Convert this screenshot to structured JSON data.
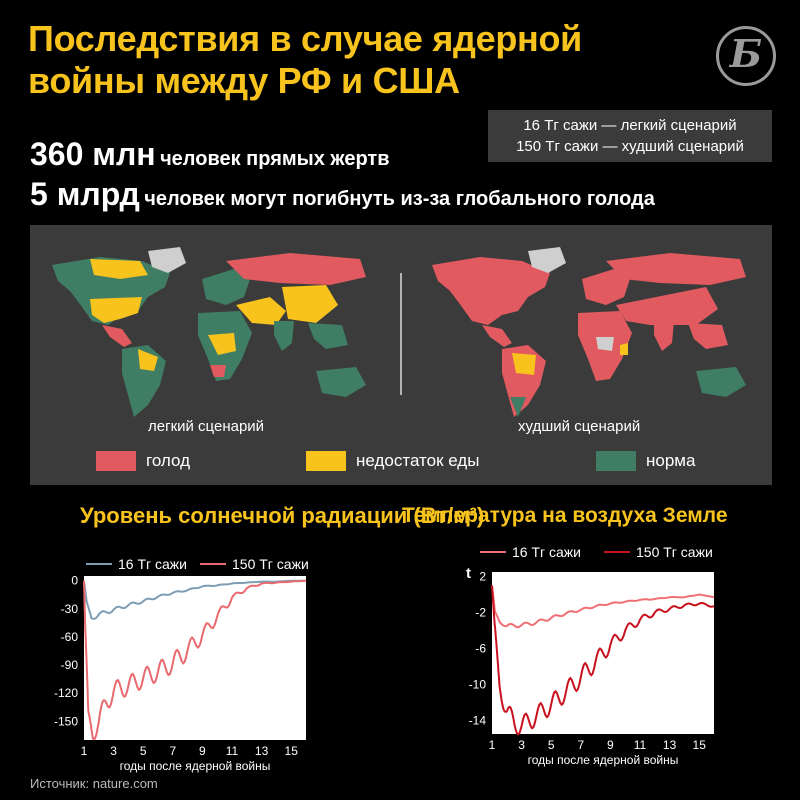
{
  "header": {
    "title": "Последствия в случае ядерной войны между РФ и США",
    "logo_letter": "Б"
  },
  "scenarios": {
    "light": "16 Тг сажи — легкий сценарий",
    "worst": "150 Тг сажи — худший сценарий"
  },
  "stats": {
    "line1_big": "360 млн",
    "line1_rest": "человек прямых жертв",
    "line2_big": "5 млрд",
    "line2_rest": "человек могут погибнуть из-за глобального голода"
  },
  "maps": {
    "light_caption": "легкий сценарий",
    "worst_caption": "худший сценарий",
    "legend": [
      {
        "label": "голод",
        "color": "#e05a60"
      },
      {
        "label": "недостаток еды",
        "color": "#f8c31d"
      },
      {
        "label": "норма",
        "color": "#3f7d64"
      }
    ]
  },
  "chart_data": [
    {
      "type": "line",
      "title": "Уровень солнечной радиации (Вт/м²)",
      "xlabel": "годы после ядерной войны",
      "ylabel": "",
      "xlim": [
        1,
        16
      ],
      "ylim": [
        -170,
        5
      ],
      "xticks": [
        1,
        3,
        5,
        7,
        9,
        11,
        13,
        15
      ],
      "yticks": [
        0,
        -30,
        -60,
        -90,
        -120,
        -150
      ],
      "series": [
        {
          "name": "16 Тг сажи",
          "color": "#7d9db5",
          "x": [
            1,
            1.2,
            1.5,
            2,
            3,
            4,
            5,
            6,
            7,
            8,
            9,
            10,
            11,
            12,
            13,
            14,
            15,
            16
          ],
          "y": [
            0,
            -25,
            -40,
            -36,
            -31,
            -26,
            -22,
            -17,
            -13,
            -10,
            -6,
            -5,
            -3,
            -2,
            -1,
            -1,
            0,
            0
          ]
        },
        {
          "name": "150 Тг сажи",
          "color": "#e86a6e",
          "x": [
            1,
            1.1,
            1.3,
            1.6,
            2,
            2.5,
            3,
            4,
            5,
            6,
            7,
            8,
            9,
            10,
            11,
            12,
            13,
            14,
            15,
            16
          ],
          "y": [
            0,
            -60,
            -150,
            -162,
            -150,
            -130,
            -118,
            -112,
            -104,
            -97,
            -88,
            -74,
            -58,
            -38,
            -18,
            -8,
            -3,
            -2,
            -1,
            0
          ]
        }
      ]
    },
    {
      "type": "line",
      "title": "Температура на воздуха Земле",
      "xlabel": "годы после ядерной войны",
      "ylabel": "t",
      "xlim": [
        1,
        16
      ],
      "ylim": [
        -15.5,
        2.5
      ],
      "xticks": [
        1,
        3,
        5,
        7,
        9,
        11,
        13,
        15
      ],
      "yticks": [
        2,
        -2,
        -6,
        -10,
        -14
      ],
      "series": [
        {
          "name": "16 Тг сажи",
          "color": "#ef6f74",
          "x": [
            1,
            1.2,
            1.5,
            2,
            3,
            4,
            5,
            6,
            7,
            8,
            9,
            10,
            11,
            12,
            13,
            14,
            15,
            16
          ],
          "y": [
            1,
            -2,
            -3,
            -3.5,
            -3.4,
            -3.1,
            -2.6,
            -2.1,
            -1.7,
            -1.3,
            -1,
            -0.8,
            -0.6,
            -0.5,
            -0.3,
            -0.3,
            0,
            -0.3
          ]
        },
        {
          "name": "150 Тг сажи",
          "color": "#c8101e",
          "x": [
            1,
            1.2,
            1.5,
            2,
            2.5,
            3,
            4,
            5,
            6,
            7,
            8,
            9,
            10,
            11,
            12,
            13,
            14,
            15,
            16
          ],
          "y": [
            1,
            -4,
            -10,
            -13,
            -14.3,
            -14.6,
            -13.5,
            -12.2,
            -10.8,
            -9.2,
            -7.4,
            -5.6,
            -4,
            -2.8,
            -2,
            -1.6,
            -1.2,
            -1,
            -1.3
          ]
        }
      ]
    }
  ],
  "source": "Источник: nature.com"
}
